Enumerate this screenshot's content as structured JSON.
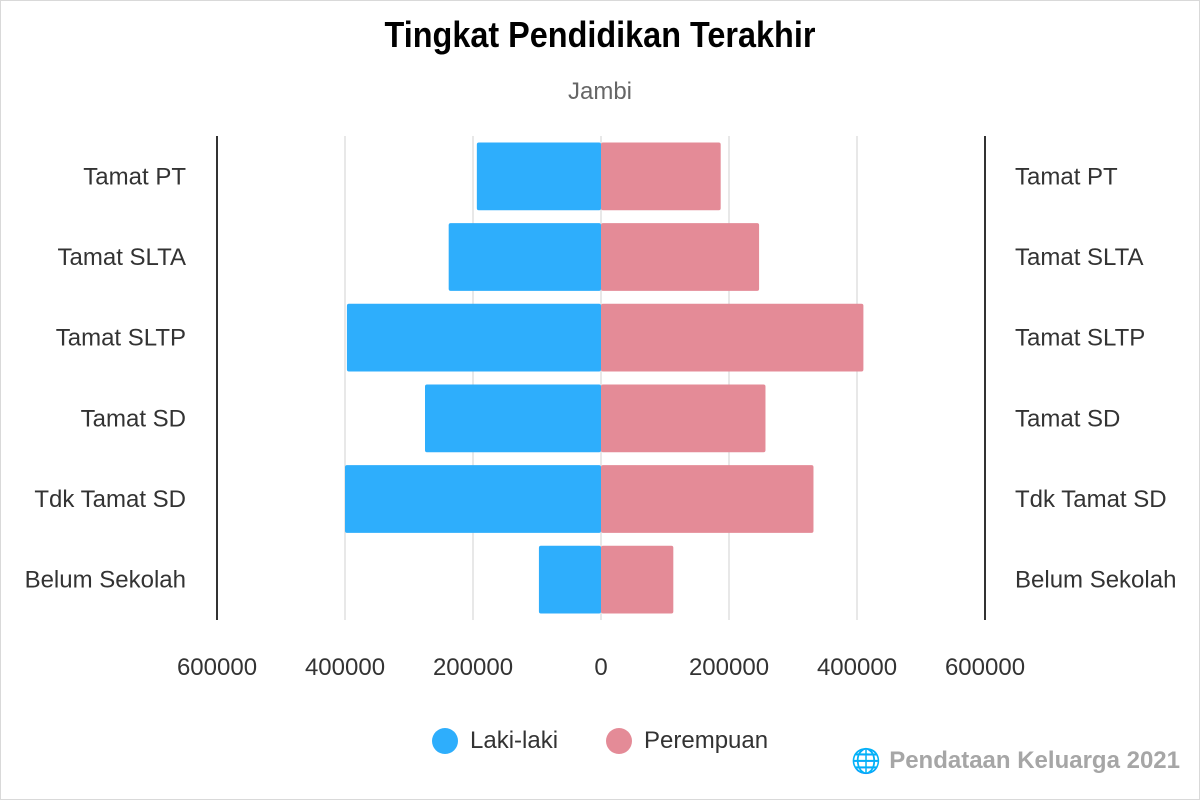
{
  "chart_data": {
    "type": "bar",
    "orientation": "horizontal",
    "layout": "population-pyramid",
    "title": "Tingkat Pendidikan Terakhir",
    "subtitle": "Jambi",
    "categories": [
      "Tamat PT",
      "Tamat SLTA",
      "Tamat SLTP",
      "Tamat SD",
      "Tdk Tamat SD",
      "Belum Sekolah"
    ],
    "series": [
      {
        "name": "Laki-laki",
        "side": "left",
        "color": "#2eaefc",
        "values": [
          194000,
          238000,
          397000,
          275000,
          400000,
          97000
        ]
      },
      {
        "name": "Perempuan",
        "side": "right",
        "color": "#e48b97",
        "values": [
          187000,
          247000,
          410000,
          257000,
          332000,
          113000
        ]
      }
    ],
    "xlim": [
      -600000,
      600000
    ],
    "xticks": [
      "600000",
      "400000",
      "200000",
      "0",
      "200000",
      "400000",
      "600000"
    ],
    "grid": true,
    "legend": "bottom"
  },
  "source_text": "Pendataan Keluarga 2021",
  "source_icon": "globe-icon"
}
